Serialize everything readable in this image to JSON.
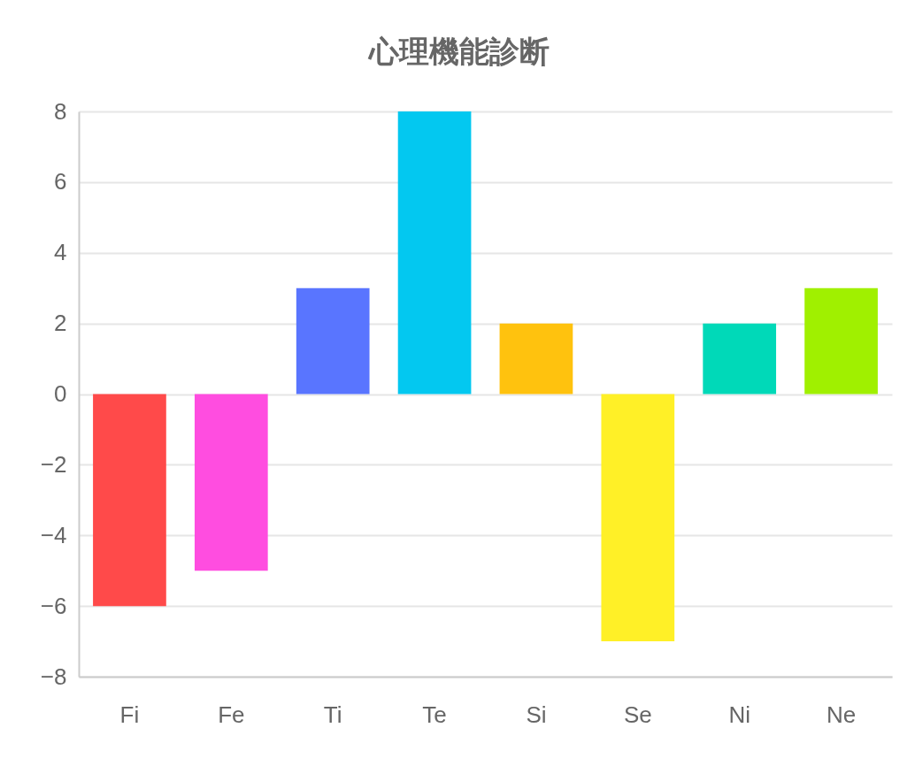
{
  "chart_data": {
    "type": "bar",
    "title": "心理機能診断",
    "categories": [
      "Fi",
      "Fe",
      "Ti",
      "Te",
      "Si",
      "Se",
      "Ni",
      "Ne"
    ],
    "values": [
      -6,
      -5,
      3,
      8,
      2,
      -7,
      2,
      3
    ],
    "colors": [
      "#ff4a4a",
      "#ff4de0",
      "#5975ff",
      "#03c8f0",
      "#ffc20e",
      "#fff027",
      "#00d9b8",
      "#a0f000"
    ],
    "ylim": [
      -8,
      8
    ],
    "yticks": [
      -8,
      -6,
      -4,
      -2,
      0,
      2,
      4,
      6,
      8
    ],
    "grid": "y",
    "legend": false
  }
}
